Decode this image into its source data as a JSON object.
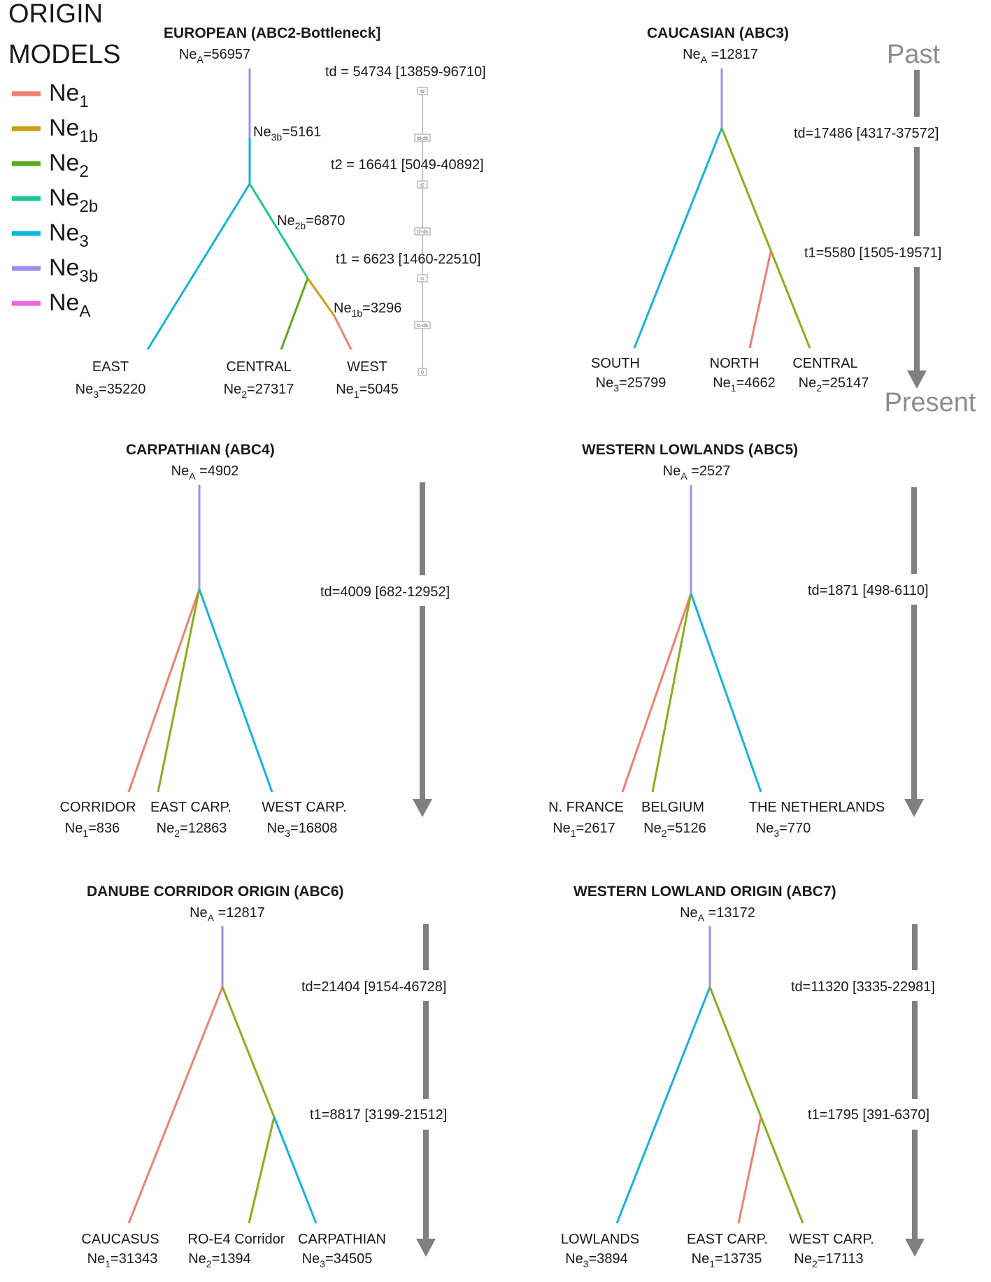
{
  "legend": {
    "title_line1": "ORIGIN",
    "title_line2": "MODELS",
    "items": [
      {
        "base": "Ne",
        "sub": "1",
        "color": "#f08070"
      },
      {
        "base": "Ne",
        "sub": "1b",
        "color": "#c8a014"
      },
      {
        "base": "Ne",
        "sub": "2",
        "color": "#5aaa1e"
      },
      {
        "base": "Ne",
        "sub": "2b",
        "color": "#1ec896"
      },
      {
        "base": "Ne",
        "sub": "3",
        "color": "#14b4dc"
      },
      {
        "base": "Ne",
        "sub": "3b",
        "color": "#a08cf0"
      },
      {
        "base": "Ne",
        "sub": "A",
        "color": "#f064dc"
      }
    ]
  },
  "time_axis": {
    "past": "Past",
    "present": "Present"
  },
  "models": {
    "european": {
      "title": "EUROPEAN (ABC2-Bottleneck]",
      "ancestral": {
        "base": "Ne",
        "sub": "A",
        "value": "=56957"
      },
      "ne3b": {
        "base": "Ne",
        "sub": "3b",
        "value": "=5161"
      },
      "ne2b": {
        "base": "Ne",
        "sub": "2b",
        "value": "=6870"
      },
      "ne1b": {
        "base": "Ne",
        "sub": "1b",
        "value": "=3296"
      },
      "times": [
        "td = 54734 [13859-96710]",
        "t2 = 16641 [5049-40892]",
        "t1 = 6623 [1460-22510]"
      ],
      "scale_ticks": [
        "td",
        "td-db",
        "t2",
        "t2-db",
        "t1",
        "t1-db",
        "0"
      ],
      "pops": [
        {
          "name": "EAST",
          "base": "Ne",
          "sub": "3",
          "value": "=35220"
        },
        {
          "name": "CENTRAL",
          "base": "Ne",
          "sub": "2",
          "value": "=27317"
        },
        {
          "name": "WEST",
          "base": "Ne",
          "sub": "1",
          "value": "=5045"
        }
      ]
    },
    "caucasian": {
      "title": "CAUCASIAN (ABC3)",
      "ancestral": {
        "base": "Ne",
        "sub": "A",
        "value": " =12817"
      },
      "times": [
        "td=17486 [4317-37572]",
        "t1=5580 [1505-19571]"
      ],
      "pops": [
        {
          "name": "SOUTH",
          "base": "Ne",
          "sub": "3",
          "value": "=25799"
        },
        {
          "name": "NORTH",
          "base": "Ne",
          "sub": "1",
          "value": "=4662"
        },
        {
          "name": "CENTRAL",
          "base": "Ne",
          "sub": "2",
          "value": "=25147"
        }
      ]
    },
    "carpathian": {
      "title": "CARPATHIAN (ABC4)",
      "ancestral": {
        "base": "Ne",
        "sub": "A",
        "value": " =4902"
      },
      "times": [
        "td=4009 [682-12952]"
      ],
      "pops": [
        {
          "name": "CORRIDOR",
          "base": "Ne",
          "sub": "1",
          "value": "=836"
        },
        {
          "name": "EAST CARP.",
          "base": "Ne",
          "sub": "2",
          "value": "=12863"
        },
        {
          "name": "WEST CARP.",
          "base": "Ne",
          "sub": "3",
          "value": "=16808"
        }
      ]
    },
    "lowlands": {
      "title": "WESTERN LOWLANDS (ABC5)",
      "ancestral": {
        "base": "Ne",
        "sub": "A",
        "value": " =2527"
      },
      "times": [
        "td=1871 [498-6110]"
      ],
      "pops": [
        {
          "name": "N. FRANCE",
          "base": "Ne",
          "sub": "1",
          "value": "=2617"
        },
        {
          "name": "BELGIUM",
          "base": "Ne",
          "sub": "2",
          "value": "=5126"
        },
        {
          "name": "THE NETHERLANDS",
          "base": "Ne",
          "sub": "3",
          "value": "=770"
        }
      ]
    },
    "danube": {
      "title": "DANUBE CORRIDOR ORIGIN (ABC6)",
      "ancestral": {
        "base": "Ne",
        "sub": "A",
        "value": " =12817"
      },
      "times": [
        "td=21404 [9154-46728]",
        "t1=8817 [3199-21512]"
      ],
      "pops": [
        {
          "name": "CAUCASUS",
          "base": "Ne",
          "sub": "1",
          "value": "=31343"
        },
        {
          "name": "RO-E4 Corridor",
          "base": "Ne",
          "sub": "2",
          "value": "=1394"
        },
        {
          "name": "CARPATHIAN",
          "base": "Ne",
          "sub": "3",
          "value": "=34505"
        }
      ]
    },
    "lowland_origin": {
      "title": "WESTERN LOWLAND ORIGIN (ABC7)",
      "ancestral": {
        "base": "Ne",
        "sub": "A",
        "value": " =13172"
      },
      "times": [
        "td=11320 [3335-22981]",
        "t1=1795 [391-6370]"
      ],
      "pops": [
        {
          "name": "LOWLANDS",
          "base": "Ne",
          "sub": "3",
          "value": "=3894"
        },
        {
          "name": "EAST CARP.",
          "base": "Ne",
          "sub": "1",
          "value": "=13735"
        },
        {
          "name": "WEST CARP.",
          "base": "Ne",
          "sub": "2",
          "value": "=17113"
        }
      ]
    }
  }
}
